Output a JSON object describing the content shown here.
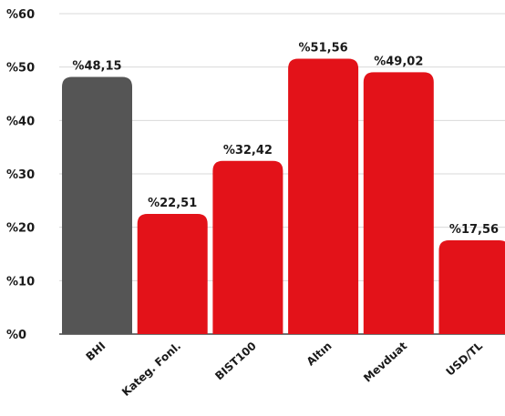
{
  "chart_data": {
    "type": "bar",
    "title": "",
    "xlabel": "",
    "ylabel": "",
    "categories": [
      "BHI",
      "Kateg. Fonl.",
      "BIST100",
      "Altın",
      "Mevduat",
      "USD/TL"
    ],
    "values": [
      48.15,
      22.51,
      32.42,
      51.56,
      49.02,
      17.56
    ],
    "data_labels": [
      "%48,15",
      "%22,51",
      "%32,42",
      "%51,56",
      "%49,02",
      "%17,56"
    ],
    "bar_colors": [
      "#555555",
      "#e31219",
      "#e31219",
      "#e31219",
      "#e31219",
      "#e31219"
    ],
    "ylim": [
      0,
      60
    ],
    "yticks": [
      0,
      10,
      20,
      30,
      40,
      50,
      60
    ],
    "ytick_labels": [
      "%0",
      "%10",
      "%20",
      "%30",
      "%40",
      "%50",
      "%60"
    ],
    "grid": true,
    "legend": "none"
  }
}
